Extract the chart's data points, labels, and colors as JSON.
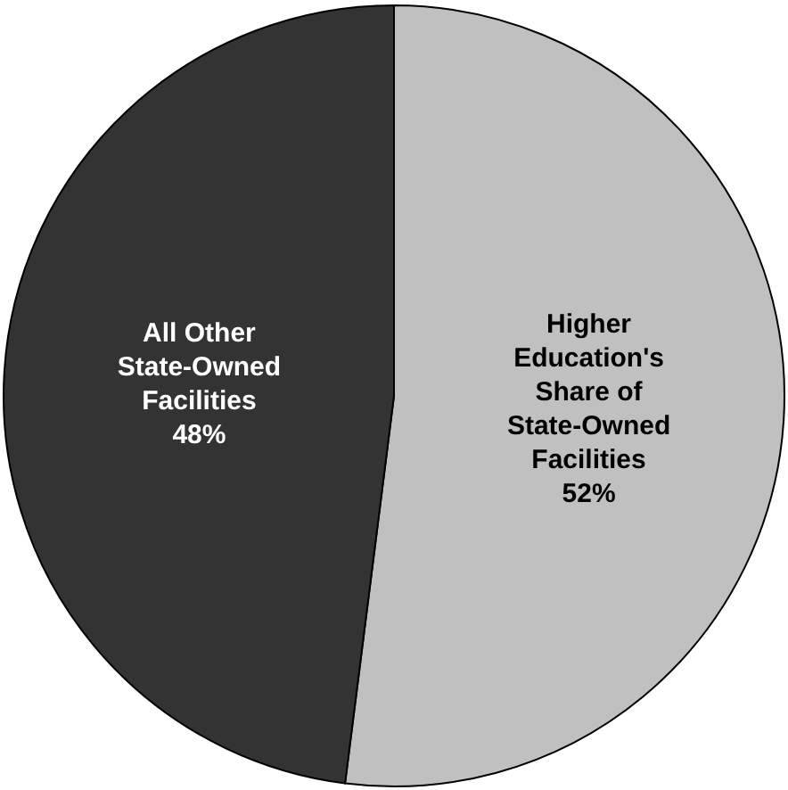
{
  "chart_data": {
    "type": "pie",
    "categories": [
      "Higher Education's Share of State-Owned Facilities",
      "All Other State-Owned Facilities"
    ],
    "values": [
      52,
      48
    ],
    "colors": [
      "#c0c0c0",
      "#333333"
    ],
    "value_labels": [
      "52%",
      "48%"
    ]
  }
}
